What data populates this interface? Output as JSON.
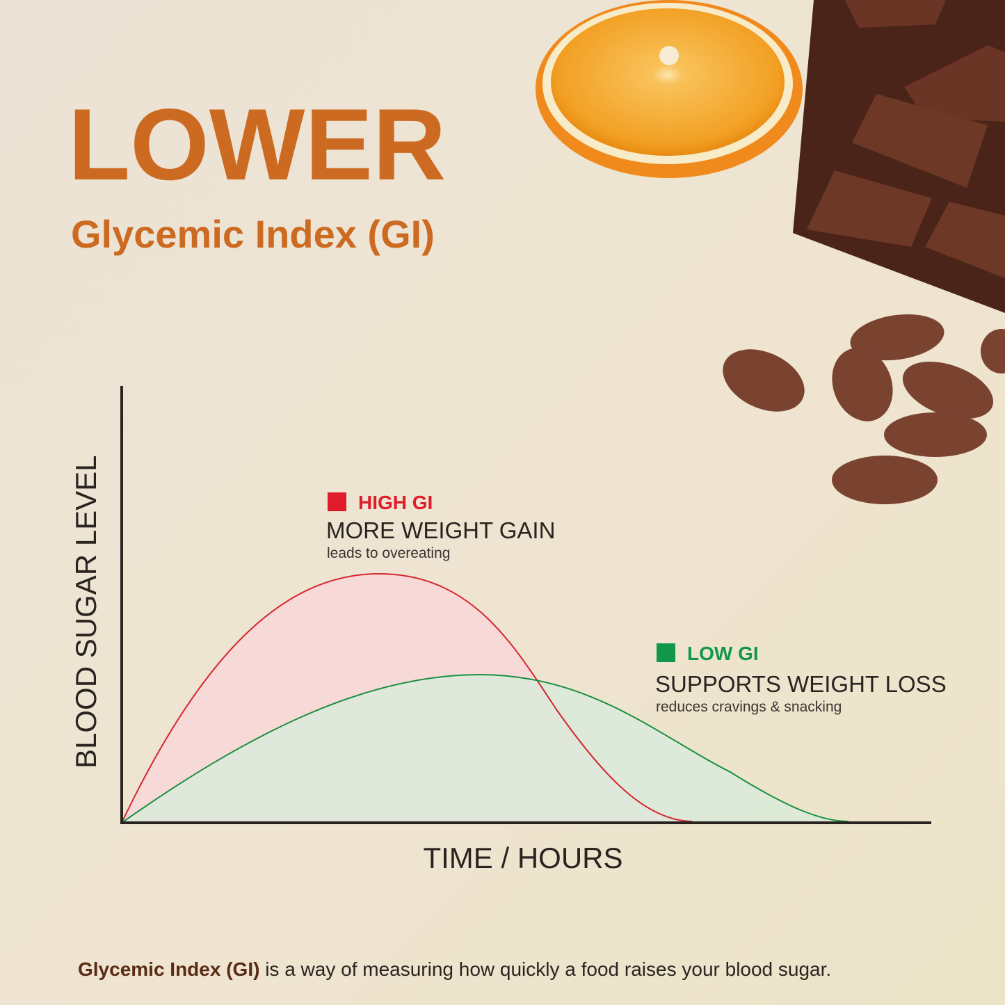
{
  "header": {
    "title": "LOWER",
    "subtitle": "Glycemic Index (GI)"
  },
  "chart": {
    "y_label": "BLOOD SUGAR LEVEL",
    "x_label": "TIME / HOURS",
    "high_gi": {
      "label": "HIGH GI",
      "heading": "MORE WEIGHT GAIN",
      "note": "leads to overeating"
    },
    "low_gi": {
      "label": "LOW GI",
      "heading": "SUPPORTS WEIGHT LOSS",
      "note": "reduces cravings & snacking"
    }
  },
  "footer": {
    "term": "Glycemic Index (GI)",
    "text": " is a way of measuring how quickly a food raises your blood sugar."
  }
}
